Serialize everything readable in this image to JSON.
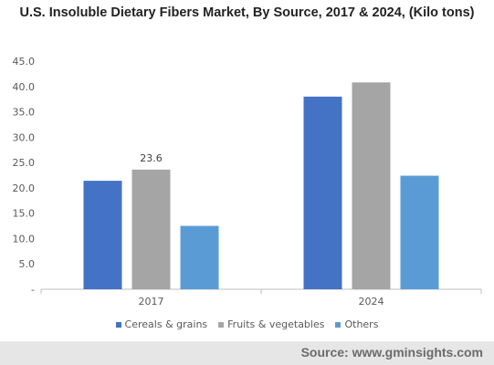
{
  "chart_data": {
    "type": "bar",
    "title": "U.S. Insoluble Dietary Fibers Market, By Source, 2017 & 2024, (Kilo tons)",
    "categories": [
      "2017",
      "2024"
    ],
    "series": [
      {
        "name": "Cereals & grains",
        "color": "#4472c4",
        "values": [
          21.4,
          38.0
        ]
      },
      {
        "name": "Fruits & vegetables",
        "color": "#a5a5a5",
        "values": [
          23.6,
          40.8
        ]
      },
      {
        "name": "Others",
        "color": "#5b9bd5",
        "values": [
          12.5,
          22.4
        ]
      }
    ],
    "y_ticks": [
      "-",
      "5.0",
      "10.0",
      "15.0",
      "20.0",
      "25.0",
      "30.0",
      "35.0",
      "40.0",
      "45.0"
    ],
    "ylim": [
      0,
      45
    ],
    "data_labels": [
      {
        "series": 1,
        "category": 0,
        "text": "23.6"
      }
    ],
    "grid": false,
    "legend_position": "bottom"
  },
  "source_text": "Source: www.gminsights.com"
}
